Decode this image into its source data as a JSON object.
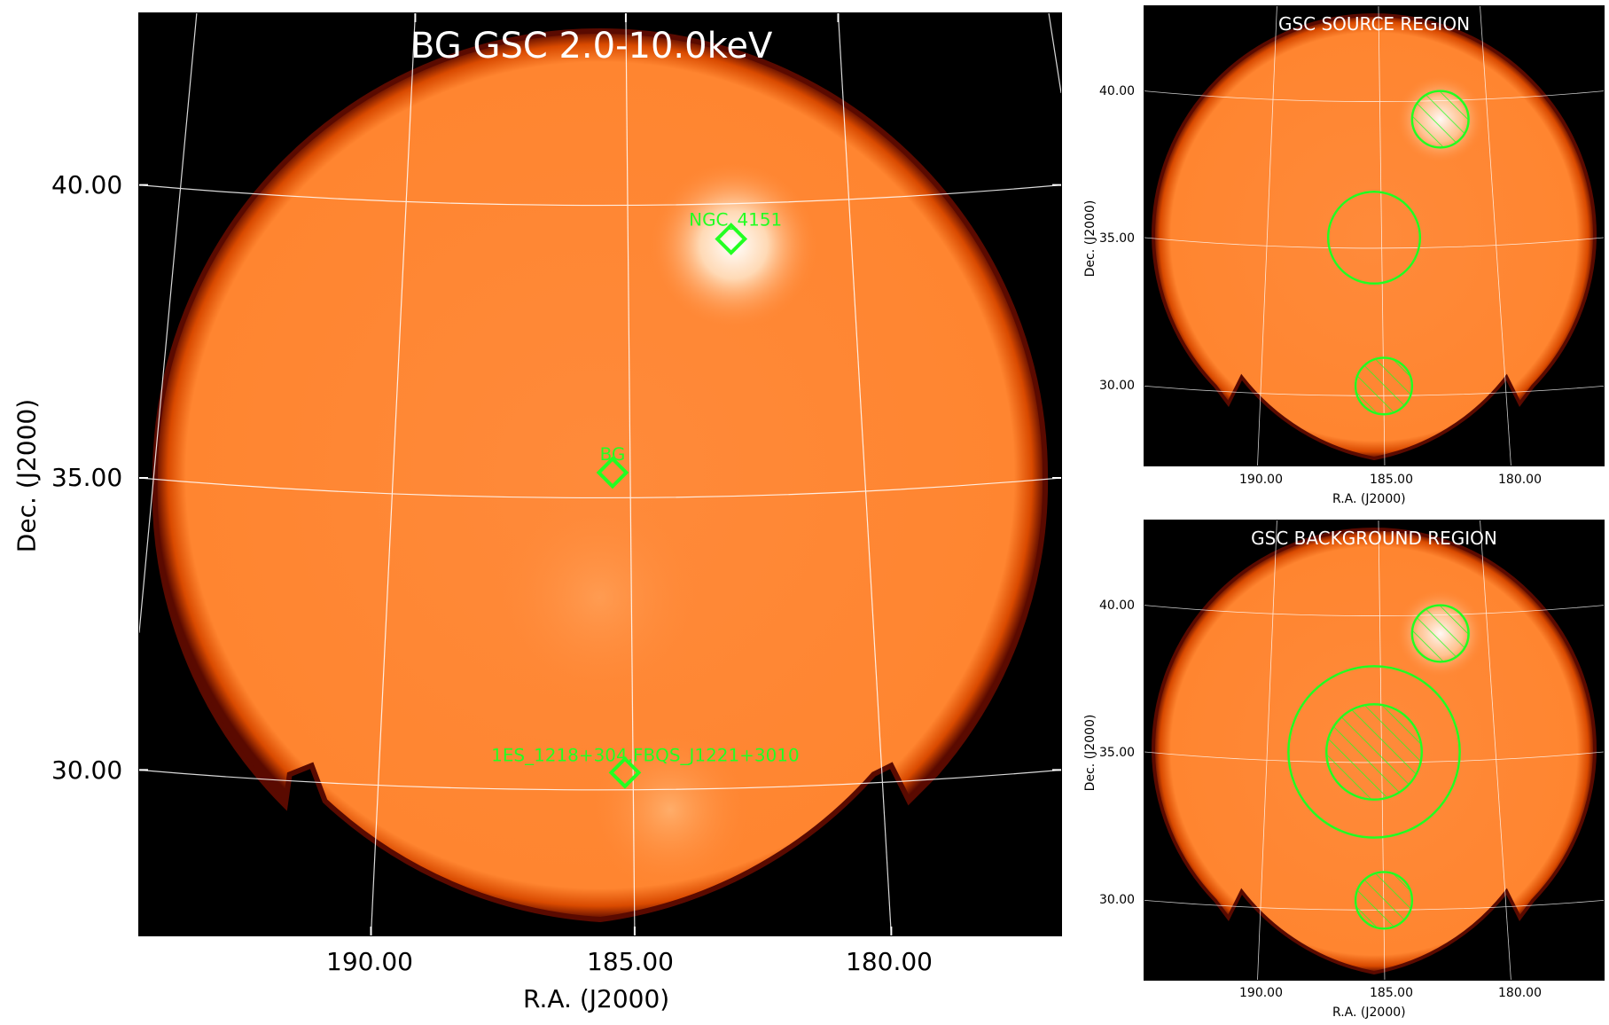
{
  "main_panel": {
    "title": "BG GSC 2.0-10.0keV",
    "xlabel": "R.A. (J2000)",
    "ylabel": "Dec. (J2000)",
    "xticks": [
      "190.00",
      "185.00",
      "180.00"
    ],
    "yticks": [
      "40.00",
      "35.00",
      "30.00"
    ],
    "sources": [
      {
        "label": "NGC_4151",
        "ra": 182.6,
        "dec": 39.4
      },
      {
        "label": "BG",
        "ra": 185.4,
        "dec": 35.4
      },
      {
        "label": "1ES_1218+304,FBQS_J1221+3010",
        "ra": 185.2,
        "dec": 30.2
      }
    ],
    "marker_color": "#22ff22"
  },
  "source_panel": {
    "title": "GSC SOURCE REGION",
    "xlabel": "R.A. (J2000)",
    "ylabel": "Dec. (J2000)",
    "xticks": [
      "190.00",
      "185.00",
      "180.00"
    ],
    "yticks": [
      "40.00",
      "35.00",
      "30.00"
    ]
  },
  "background_panel": {
    "title": "GSC BACKGROUND REGION",
    "xlabel": "R.A. (J2000)",
    "ylabel": "Dec. (J2000)",
    "xticks": [
      "190.00",
      "185.00",
      "180.00"
    ],
    "yticks": [
      "40.00",
      "35.00",
      "30.00"
    ]
  },
  "colors": {
    "image_fill": "#ff8a33",
    "edge": "#8a1a00",
    "background": "#000000",
    "region": "#22ff22",
    "grid": "#ffffff"
  }
}
